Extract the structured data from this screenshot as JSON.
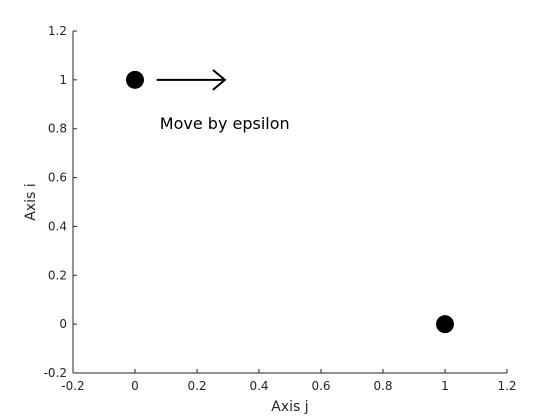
{
  "chart_data": {
    "type": "scatter",
    "title": "",
    "xlabel": "Axis j",
    "ylabel": "Axis i",
    "xlim": [
      -0.2,
      1.2
    ],
    "ylim": [
      -0.2,
      1.2
    ],
    "xticks": [
      -0.2,
      0,
      0.2,
      0.4,
      0.6,
      0.8,
      1,
      1.2
    ],
    "yticks": [
      -0.2,
      0,
      0.2,
      0.4,
      0.6,
      0.8,
      1,
      1.2
    ],
    "xtick_labels": [
      "-0.2",
      "0",
      "0.2",
      "0.4",
      "0.6",
      "0.8",
      "1",
      "1.2"
    ],
    "ytick_labels": [
      "-0.2",
      "0",
      "0.2",
      "0.4",
      "0.6",
      "0.8",
      "1",
      "1.2"
    ],
    "grid": false,
    "points": [
      {
        "x": 0,
        "y": 1
      },
      {
        "x": 1,
        "y": 0
      }
    ],
    "marker_color": "#000000",
    "arrow": {
      "x_start": 0.07,
      "x_end": 0.29,
      "y": 1
    },
    "annotation": {
      "text": "Move by epsilon",
      "x": 0.08,
      "y": 0.82
    }
  }
}
